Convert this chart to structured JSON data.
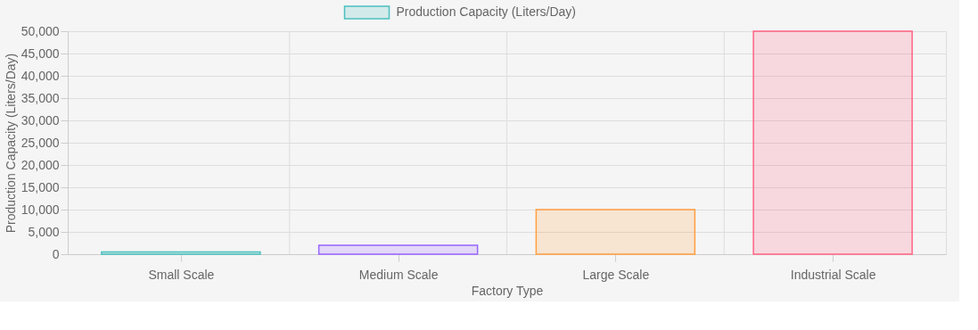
{
  "chart_data": {
    "type": "bar",
    "xlabel": "Factory Type",
    "ylabel": "Production Capacity (Liters/Day)",
    "categories": [
      "Small Scale",
      "Medium Scale",
      "Large Scale",
      "Industrial Scale"
    ],
    "series": [
      {
        "name": "Production Capacity (Liters/Day)",
        "values": [
          500,
          2000,
          10000,
          50000
        ],
        "colors": [
          "#4bc0c0",
          "#9966ff",
          "#ff9f40",
          "#ff6384"
        ]
      }
    ],
    "ylim": [
      0,
      50000
    ],
    "yticks": [
      0,
      {
        "value": 5000,
        "label": "5,000"
      },
      {
        "value": 10000,
        "label": "10,000"
      },
      {
        "value": 15000,
        "label": "15,000"
      },
      {
        "value": 20000,
        "label": "20,000"
      },
      {
        "value": 25000,
        "label": "25,000"
      },
      {
        "value": 30000,
        "label": "30,000"
      },
      {
        "value": 35000,
        "label": "35,000"
      },
      {
        "value": 40000,
        "label": "40,000"
      },
      {
        "value": 45000,
        "label": "45,000"
      },
      {
        "value": 50000,
        "label": "50,000"
      }
    ],
    "grid": true,
    "legend": "top"
  }
}
